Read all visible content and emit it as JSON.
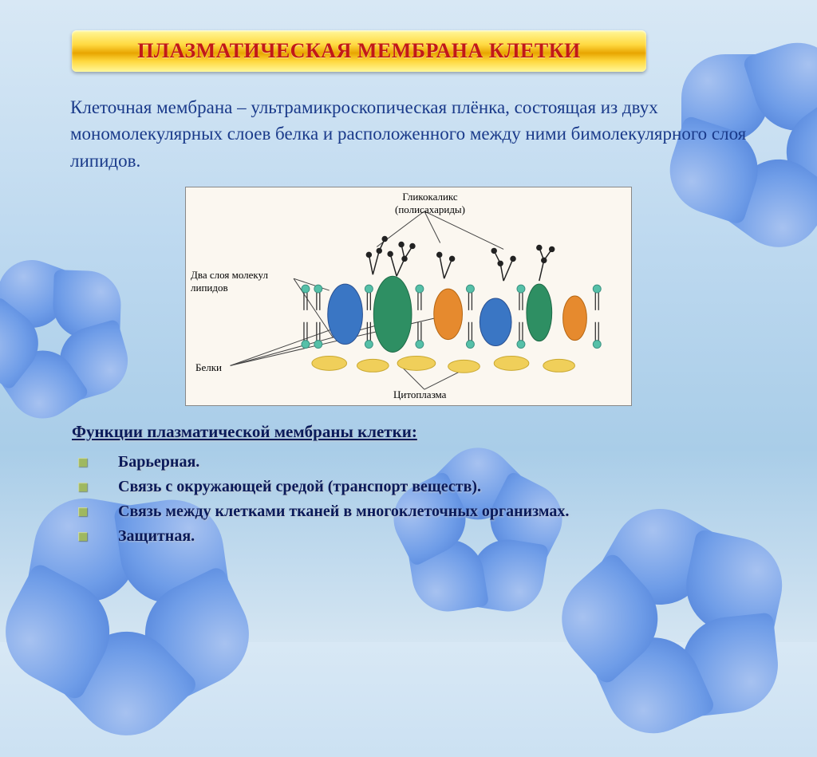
{
  "title": "ПЛАЗМАТИЧЕСКАЯ МЕМБРАНА КЛЕТКИ",
  "definition": "Клеточная мембрана – ультрамикроскопическая плёнка, состоящая из двух мономолекулярных слоев белка и расположенного между ними бимолекулярного слоя липидов.",
  "diagram": {
    "labels": {
      "glycocalyx1": "Гликокаликс",
      "glycocalyx2": "(полисахариды)",
      "lipids": "Два слоя молекул липидов",
      "proteins": "Белки",
      "cytoplasm": "Цитоплазма"
    },
    "colors": {
      "bg": "#fbf7f0",
      "lipid_head": "#55c0a8",
      "lipid_tail": "#333333",
      "glyco": "#222222",
      "protein1": "#2e8f63",
      "protein2": "#3a76c4",
      "protein3": "#e68a2e",
      "cyto_blob": "#f0cf5a",
      "line": "#444444"
    }
  },
  "functions": {
    "title": "Функции плазматической мембраны клетки:",
    "items": [
      "Барьерная.",
      "Связь с окружающей средой (транспорт веществ).",
      "Связь между клетками тканей в многоклеточных организмах.",
      "Защитная."
    ]
  },
  "style": {
    "title_color": "#c21818",
    "body_text_color": "#1a3a8a",
    "func_text_color": "#0a1a5a",
    "bullet_color": "#9fb860"
  }
}
